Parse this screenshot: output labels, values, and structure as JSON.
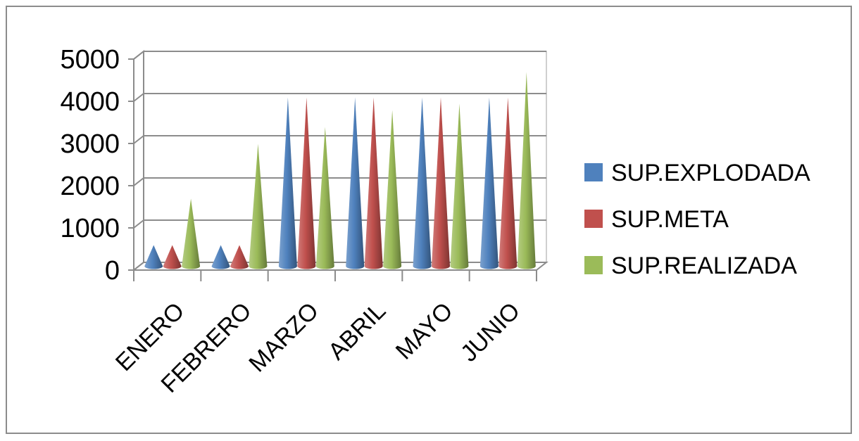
{
  "chart_data": {
    "type": "bar",
    "bar_shape": "3d-cone",
    "categories": [
      "ENERO",
      "FEBRERO",
      "MARZO",
      "ABRIL",
      "MAYO",
      "JUNIO"
    ],
    "series": [
      {
        "name": "SUP.EXPLODADA",
        "color": "#4f81bd",
        "values": [
          500,
          500,
          4000,
          4000,
          4000,
          4000
        ]
      },
      {
        "name": "SUP.META",
        "color": "#c0504d",
        "values": [
          500,
          500,
          4000,
          4000,
          4000,
          4000
        ]
      },
      {
        "name": "SUP.REALIZADA",
        "color": "#9bbb59",
        "values": [
          1600,
          2900,
          3300,
          3700,
          3850,
          4600
        ]
      }
    ],
    "y_ticks": [
      "0",
      "1000",
      "2000",
      "3000",
      "4000",
      "5000"
    ],
    "ylim": [
      0,
      5000
    ],
    "grid": true,
    "legend_position": "right"
  }
}
